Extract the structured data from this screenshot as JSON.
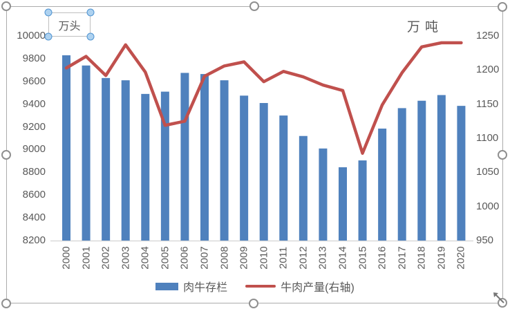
{
  "annotations": {
    "left_unit": "万头",
    "right_unit": "万吨"
  },
  "legend": {
    "items": [
      {
        "label": "肉牛存栏"
      },
      {
        "label": "牛肉产量(右轴)"
      }
    ]
  },
  "colors": {
    "bar": "#4F81BD",
    "line": "#C0504D",
    "axis_text": "#595959"
  },
  "chart_data": {
    "type": "bar+line",
    "title": "",
    "categories": [
      "2000",
      "2001",
      "2002",
      "2003",
      "2004",
      "2005",
      "2006",
      "2007",
      "2008",
      "2009",
      "2010",
      "2011",
      "2012",
      "2013",
      "2014",
      "2015",
      "2016",
      "2017",
      "2018",
      "2019",
      "2020"
    ],
    "series": [
      {
        "name": "肉牛存栏",
        "type": "bar",
        "axis": "left",
        "color": "#4F81BD",
        "values": [
          9830,
          9740,
          9630,
          9610,
          9490,
          9510,
          9675,
          9665,
          9610,
          9475,
          9410,
          9300,
          9120,
          9010,
          8845,
          8905,
          9185,
          9365,
          9430,
          9480,
          9385
        ]
      },
      {
        "name": "牛肉产量(右轴)",
        "type": "line",
        "axis": "right",
        "color": "#C0504D",
        "values": [
          1203,
          1220,
          1192,
          1237,
          1197,
          1119,
          1125,
          1191,
          1206,
          1212,
          1183,
          1198,
          1190,
          1178,
          1170,
          1078,
          1149,
          1196,
          1234,
          1240,
          1240
        ]
      }
    ],
    "left_axis": {
      "unit": "万头",
      "min": 8200,
      "max": 10000,
      "step": 200,
      "tick_labels": [
        "10000",
        "9800",
        "9600",
        "9400",
        "9200",
        "9000",
        "8800",
        "8600",
        "8400",
        "8200"
      ]
    },
    "right_axis": {
      "unit": "万吨",
      "min": 950,
      "max": 1250,
      "step": 50,
      "tick_labels": [
        "1250",
        "1200",
        "1150",
        "1100",
        "1050",
        "1000",
        "950"
      ]
    },
    "legend_position": "bottom",
    "grid": false,
    "xlabel": "",
    "ylabel": ""
  }
}
